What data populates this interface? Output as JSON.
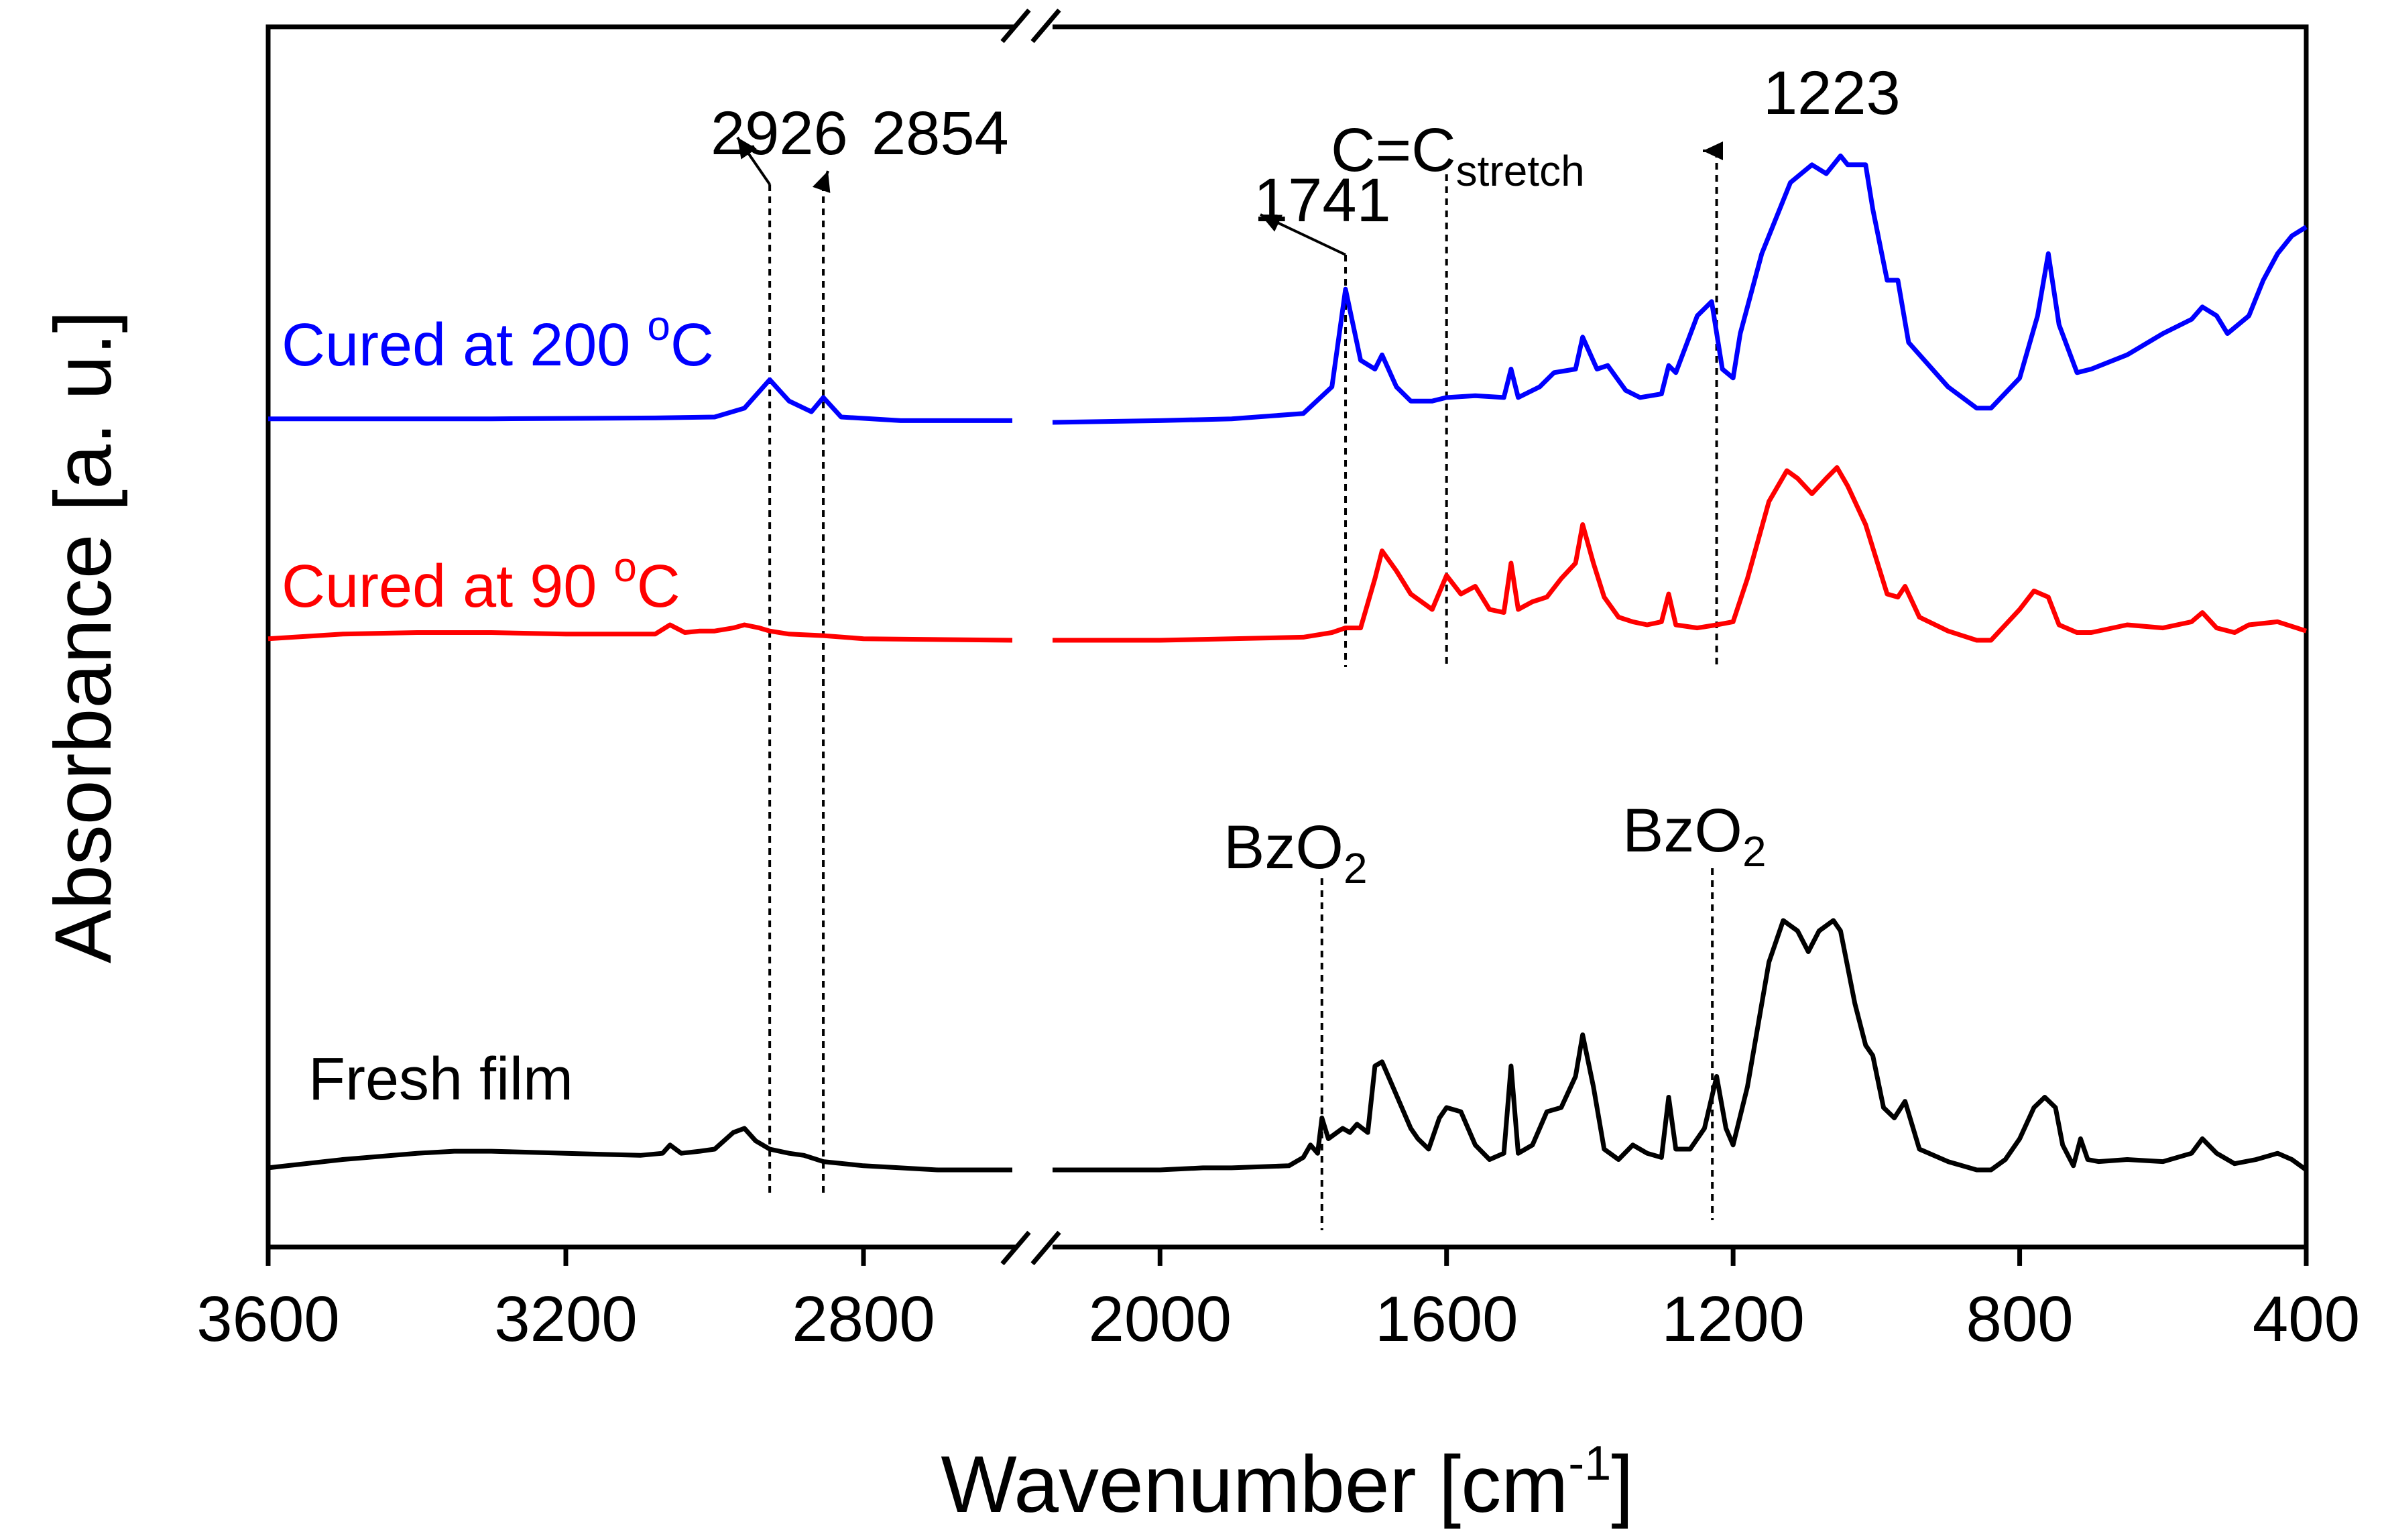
{
  "chart_data": {
    "type": "line",
    "title": "",
    "xlabel": {
      "main": "Wavenumber [cm",
      "sup": "-1",
      "tail": "]"
    },
    "ylabel": "Absorbance [a. u.]",
    "x_direction": "descending",
    "x_broken_axis": {
      "segments": [
        [
          3600,
          2600
        ],
        [
          2150,
          400
        ]
      ],
      "left_ticks": [
        "3600",
        "3200",
        "2800"
      ],
      "right_ticks": [
        "2000",
        "1600",
        "1200",
        "800",
        "400"
      ]
    },
    "yticks": false,
    "series": [
      {
        "name": "Cured at 200 °C",
        "label": {
          "text": "Cured at 200 ",
          "sup": "o",
          "tail": "C"
        },
        "color": "#0000ff",
        "offset": 2.0,
        "left": [
          [
            3600,
            0.02
          ],
          [
            3300,
            0.02
          ],
          [
            3080,
            0.025
          ],
          [
            3000,
            0.03
          ],
          [
            2960,
            0.08
          ],
          [
            2926,
            0.24
          ],
          [
            2900,
            0.12
          ],
          [
            2870,
            0.06
          ],
          [
            2854,
            0.14
          ],
          [
            2830,
            0.03
          ],
          [
            2750,
            0.01
          ],
          [
            2600,
            0.01
          ]
        ],
        "right": [
          [
            2150,
            0.0
          ],
          [
            2000,
            0.01
          ],
          [
            1900,
            0.02
          ],
          [
            1800,
            0.05
          ],
          [
            1760,
            0.2
          ],
          [
            1741,
            0.75
          ],
          [
            1720,
            0.35
          ],
          [
            1700,
            0.3
          ],
          [
            1690,
            0.38
          ],
          [
            1670,
            0.2
          ],
          [
            1650,
            0.12
          ],
          [
            1620,
            0.12
          ],
          [
            1600,
            0.14
          ],
          [
            1560,
            0.15
          ],
          [
            1520,
            0.14
          ],
          [
            1510,
            0.3
          ],
          [
            1500,
            0.14
          ],
          [
            1470,
            0.2
          ],
          [
            1450,
            0.28
          ],
          [
            1420,
            0.3
          ],
          [
            1410,
            0.48
          ],
          [
            1390,
            0.3
          ],
          [
            1375,
            0.32
          ],
          [
            1350,
            0.18
          ],
          [
            1330,
            0.14
          ],
          [
            1300,
            0.16
          ],
          [
            1290,
            0.32
          ],
          [
            1280,
            0.28
          ],
          [
            1250,
            0.6
          ],
          [
            1230,
            0.68
          ],
          [
            1215,
            0.3
          ],
          [
            1200,
            0.25
          ],
          [
            1190,
            0.5
          ],
          [
            1160,
            0.95
          ],
          [
            1120,
            1.35
          ],
          [
            1090,
            1.45
          ],
          [
            1070,
            1.4
          ],
          [
            1050,
            1.5
          ],
          [
            1040,
            1.45
          ],
          [
            1015,
            1.45
          ],
          [
            1005,
            1.2
          ],
          [
            985,
            0.8
          ],
          [
            970,
            0.8
          ],
          [
            955,
            0.45
          ],
          [
            900,
            0.2
          ],
          [
            860,
            0.08
          ],
          [
            840,
            0.08
          ],
          [
            800,
            0.25
          ],
          [
            775,
            0.6
          ],
          [
            760,
            0.95
          ],
          [
            745,
            0.55
          ],
          [
            720,
            0.28
          ],
          [
            700,
            0.3
          ],
          [
            650,
            0.38
          ],
          [
            600,
            0.5
          ],
          [
            560,
            0.58
          ],
          [
            545,
            0.65
          ],
          [
            525,
            0.6
          ],
          [
            510,
            0.5
          ],
          [
            480,
            0.6
          ],
          [
            460,
            0.8
          ],
          [
            440,
            0.95
          ],
          [
            420,
            1.05
          ],
          [
            400,
            1.1
          ]
        ]
      },
      {
        "name": "Cured at 90 °C",
        "label": {
          "text": "Cured at 90 ",
          "sup": "o",
          "tail": "C"
        },
        "color": "#ff0000",
        "offset": 1.0,
        "left": [
          [
            3600,
            0.01
          ],
          [
            3500,
            0.04
          ],
          [
            3400,
            0.05
          ],
          [
            3300,
            0.05
          ],
          [
            3200,
            0.04
          ],
          [
            3080,
            0.04
          ],
          [
            3060,
            0.1
          ],
          [
            3040,
            0.05
          ],
          [
            3020,
            0.06
          ],
          [
            3000,
            0.06
          ],
          [
            2975,
            0.08
          ],
          [
            2960,
            0.1
          ],
          [
            2940,
            0.08
          ],
          [
            2926,
            0.06
          ],
          [
            2900,
            0.04
          ],
          [
            2854,
            0.03
          ],
          [
            2800,
            0.01
          ],
          [
            2600,
            0.0
          ]
        ],
        "right": [
          [
            2150,
            0.0
          ],
          [
            2000,
            0.0
          ],
          [
            1900,
            0.01
          ],
          [
            1800,
            0.02
          ],
          [
            1760,
            0.05
          ],
          [
            1741,
            0.08
          ],
          [
            1720,
            0.08
          ],
          [
            1700,
            0.4
          ],
          [
            1690,
            0.58
          ],
          [
            1670,
            0.45
          ],
          [
            1650,
            0.3
          ],
          [
            1620,
            0.2
          ],
          [
            1600,
            0.42
          ],
          [
            1580,
            0.3
          ],
          [
            1560,
            0.35
          ],
          [
            1540,
            0.2
          ],
          [
            1520,
            0.18
          ],
          [
            1510,
            0.5
          ],
          [
            1500,
            0.2
          ],
          [
            1480,
            0.25
          ],
          [
            1460,
            0.28
          ],
          [
            1440,
            0.4
          ],
          [
            1420,
            0.5
          ],
          [
            1410,
            0.75
          ],
          [
            1395,
            0.5
          ],
          [
            1380,
            0.28
          ],
          [
            1360,
            0.15
          ],
          [
            1340,
            0.12
          ],
          [
            1320,
            0.1
          ],
          [
            1300,
            0.12
          ],
          [
            1290,
            0.3
          ],
          [
            1280,
            0.1
          ],
          [
            1250,
            0.08
          ],
          [
            1223,
            0.1
          ],
          [
            1200,
            0.12
          ],
          [
            1180,
            0.4
          ],
          [
            1150,
            0.9
          ],
          [
            1125,
            1.1
          ],
          [
            1110,
            1.05
          ],
          [
            1090,
            0.95
          ],
          [
            1070,
            1.05
          ],
          [
            1055,
            1.12
          ],
          [
            1040,
            1.0
          ],
          [
            1015,
            0.75
          ],
          [
            1005,
            0.6
          ],
          [
            985,
            0.3
          ],
          [
            970,
            0.28
          ],
          [
            960,
            0.35
          ],
          [
            940,
            0.15
          ],
          [
            900,
            0.06
          ],
          [
            860,
            0.0
          ],
          [
            840,
            0.0
          ],
          [
            820,
            0.1
          ],
          [
            800,
            0.2
          ],
          [
            780,
            0.32
          ],
          [
            760,
            0.28
          ],
          [
            745,
            0.1
          ],
          [
            720,
            0.05
          ],
          [
            700,
            0.05
          ],
          [
            650,
            0.1
          ],
          [
            600,
            0.08
          ],
          [
            560,
            0.12
          ],
          [
            545,
            0.18
          ],
          [
            525,
            0.08
          ],
          [
            500,
            0.05
          ],
          [
            480,
            0.1
          ],
          [
            440,
            0.12
          ],
          [
            400,
            0.06
          ]
        ]
      },
      {
        "name": "Fresh film",
        "label": {
          "text": "Fresh film",
          "sup": "",
          "tail": ""
        },
        "color": "#000000",
        "offset": 0.0,
        "left": [
          [
            3600,
            0.01
          ],
          [
            3500,
            0.05
          ],
          [
            3400,
            0.08
          ],
          [
            3350,
            0.09
          ],
          [
            3300,
            0.09
          ],
          [
            3200,
            0.08
          ],
          [
            3100,
            0.07
          ],
          [
            3070,
            0.08
          ],
          [
            3060,
            0.12
          ],
          [
            3045,
            0.08
          ],
          [
            3020,
            0.09
          ],
          [
            3000,
            0.1
          ],
          [
            2975,
            0.18
          ],
          [
            2960,
            0.2
          ],
          [
            2945,
            0.14
          ],
          [
            2926,
            0.1
          ],
          [
            2900,
            0.08
          ],
          [
            2880,
            0.07
          ],
          [
            2854,
            0.04
          ],
          [
            2800,
            0.02
          ],
          [
            2700,
            0.0
          ],
          [
            2600,
            0.0
          ]
        ],
        "right": [
          [
            2150,
            0.0
          ],
          [
            2000,
            0.0
          ],
          [
            1940,
            0.01
          ],
          [
            1900,
            0.01
          ],
          [
            1820,
            0.02
          ],
          [
            1800,
            0.06
          ],
          [
            1790,
            0.12
          ],
          [
            1780,
            0.08
          ],
          [
            1774,
            0.25
          ],
          [
            1765,
            0.15
          ],
          [
            1745,
            0.2
          ],
          [
            1735,
            0.18
          ],
          [
            1725,
            0.22
          ],
          [
            1710,
            0.18
          ],
          [
            1700,
            0.5
          ],
          [
            1690,
            0.52
          ],
          [
            1675,
            0.4
          ],
          [
            1650,
            0.2
          ],
          [
            1640,
            0.15
          ],
          [
            1625,
            0.1
          ],
          [
            1610,
            0.25
          ],
          [
            1600,
            0.3
          ],
          [
            1580,
            0.28
          ],
          [
            1560,
            0.12
          ],
          [
            1540,
            0.05
          ],
          [
            1520,
            0.08
          ],
          [
            1510,
            0.5
          ],
          [
            1500,
            0.08
          ],
          [
            1480,
            0.12
          ],
          [
            1460,
            0.28
          ],
          [
            1440,
            0.3
          ],
          [
            1420,
            0.45
          ],
          [
            1410,
            0.65
          ],
          [
            1395,
            0.4
          ],
          [
            1380,
            0.1
          ],
          [
            1360,
            0.05
          ],
          [
            1340,
            0.12
          ],
          [
            1320,
            0.08
          ],
          [
            1300,
            0.06
          ],
          [
            1290,
            0.35
          ],
          [
            1280,
            0.1
          ],
          [
            1260,
            0.1
          ],
          [
            1240,
            0.2
          ],
          [
            1223,
            0.45
          ],
          [
            1210,
            0.2
          ],
          [
            1200,
            0.12
          ],
          [
            1180,
            0.4
          ],
          [
            1150,
            1.0
          ],
          [
            1130,
            1.2
          ],
          [
            1110,
            1.15
          ],
          [
            1095,
            1.05
          ],
          [
            1080,
            1.15
          ],
          [
            1060,
            1.2
          ],
          [
            1050,
            1.15
          ],
          [
            1030,
            0.8
          ],
          [
            1015,
            0.6
          ],
          [
            1005,
            0.55
          ],
          [
            990,
            0.3
          ],
          [
            975,
            0.25
          ],
          [
            960,
            0.33
          ],
          [
            940,
            0.1
          ],
          [
            900,
            0.04
          ],
          [
            860,
            0.0
          ],
          [
            840,
            0.0
          ],
          [
            820,
            0.05
          ],
          [
            800,
            0.15
          ],
          [
            780,
            0.3
          ],
          [
            765,
            0.35
          ],
          [
            750,
            0.3
          ],
          [
            740,
            0.12
          ],
          [
            725,
            0.02
          ],
          [
            715,
            0.15
          ],
          [
            705,
            0.05
          ],
          [
            690,
            0.04
          ],
          [
            650,
            0.05
          ],
          [
            600,
            0.04
          ],
          [
            560,
            0.08
          ],
          [
            545,
            0.15
          ],
          [
            525,
            0.08
          ],
          [
            500,
            0.03
          ],
          [
            470,
            0.05
          ],
          [
            440,
            0.08
          ],
          [
            420,
            0.05
          ],
          [
            400,
            0.0
          ]
        ]
      }
    ],
    "annotations": [
      {
        "id": "a2926",
        "text": "2926",
        "sub": "",
        "x": 2926,
        "segment": "left",
        "style": "arrow-left",
        "color": "#000000"
      },
      {
        "id": "a2854",
        "text": "2854",
        "sub": "",
        "x": 2854,
        "segment": "left",
        "style": "arrow-right",
        "color": "#000000"
      },
      {
        "id": "a1741",
        "text": "1741",
        "sub": "",
        "x": 1741,
        "segment": "right",
        "style": "arrow-left",
        "color": "#000000"
      },
      {
        "id": "acc",
        "text": "C=C",
        "sub": "stretch",
        "x": 1600,
        "segment": "right",
        "style": "label-top",
        "color": "#000000"
      },
      {
        "id": "a1223",
        "text": "1223",
        "sub": "",
        "x": 1223,
        "segment": "right",
        "style": "arrow-right-top",
        "color": "#000000"
      },
      {
        "id": "abz1",
        "text": "BzO",
        "sub": "2",
        "x": 1774,
        "segment": "right",
        "style": "label-mid",
        "color": "#000000"
      },
      {
        "id": "abz2",
        "text": "BzO",
        "sub": "2",
        "x": 1229,
        "segment": "right",
        "style": "label-mid",
        "color": "#000000"
      }
    ]
  }
}
